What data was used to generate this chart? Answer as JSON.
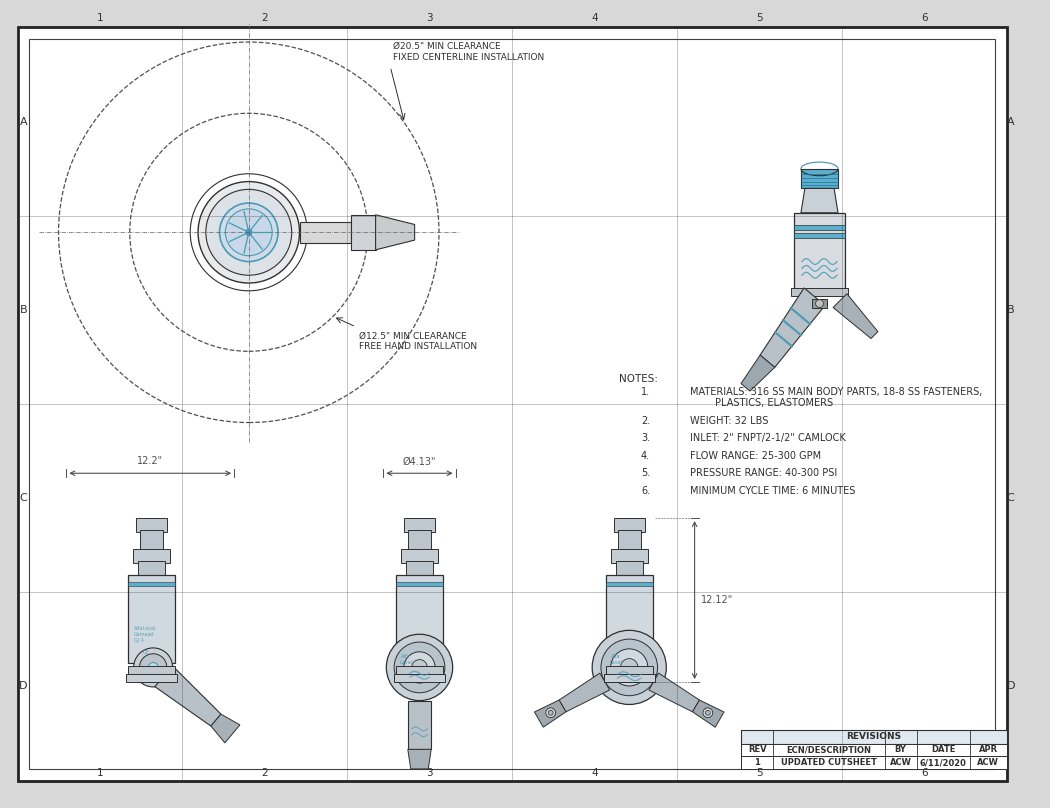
{
  "bg_color": "#d8d8d8",
  "paper_color": "#ffffff",
  "line_color": "#303030",
  "dim_line_color": "#505050",
  "blue_accent": "#4a9ab5",
  "col_labels": [
    "1",
    "2",
    "3",
    "4",
    "5",
    "6"
  ],
  "row_labels": [
    "A",
    "B",
    "C",
    "D"
  ],
  "notes_title": "NOTES:",
  "notes": [
    [
      "MATERIALS: 316 SS MAIN BODY PARTS, 18-8 SS FASTENERS,",
      "        PLASTICS, ELASTOMERS"
    ],
    [
      "WEIGHT: 32 LBS"
    ],
    [
      "INLET: 2\" FNPT/2-1/2\" CAMLOCK"
    ],
    [
      "FLOW RANGE: 25-300 GPM"
    ],
    [
      "PRESSURE RANGE: 40-300 PSI"
    ],
    [
      "MINIMUM CYCLE TIME: 6 MINUTES"
    ]
  ],
  "dim_large_circle": "Ø20.5\" MIN CLEARANCE\nFIXED CENTERLINE INSTALLATION",
  "dim_small_circle": "Ø12.5\" MIN CLEARANCE\nFREE HAND INSTALLATION",
  "dim_width": "12.2\"",
  "dim_diam": "Ø4.13\"",
  "dim_height": "12.12\"",
  "revisions_header": "REVISIONS",
  "rev_col_headers": [
    "REV",
    "ECN/DESCRIPTION",
    "BY",
    "DATE",
    "APR"
  ],
  "rev_row1": [
    "1",
    "UPDATED CUTSHEET",
    "ACW",
    "6/11/2020",
    "ACW"
  ]
}
